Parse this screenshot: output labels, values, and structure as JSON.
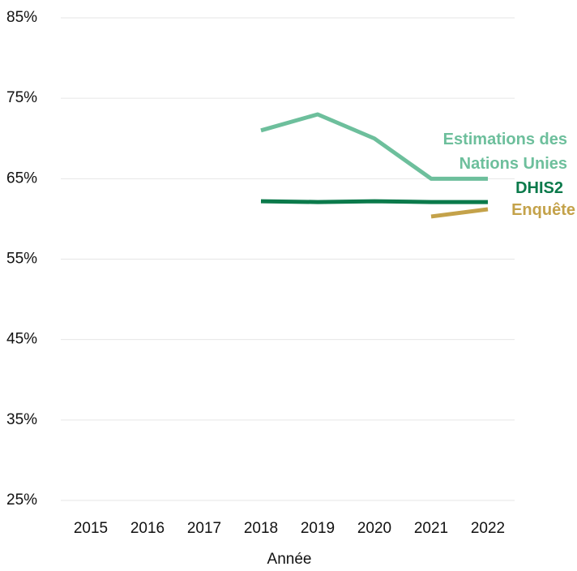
{
  "chart_data": {
    "type": "line",
    "categories": [
      "2015",
      "2016",
      "2017",
      "2018",
      "2019",
      "2020",
      "2021",
      "2022"
    ],
    "x_label": "Année",
    "series": [
      {
        "name": "Estimations des Nations Unies",
        "color": "#6dbf9c",
        "values": [
          null,
          null,
          null,
          71,
          73,
          70,
          65,
          65
        ]
      },
      {
        "name": "DHIS2",
        "color": "#0b7a4b",
        "values": [
          null,
          null,
          null,
          62.2,
          62.1,
          62.2,
          62.1,
          62.1
        ]
      },
      {
        "name": "Enquête",
        "color": "#c4a24a",
        "values": [
          null,
          null,
          null,
          null,
          null,
          null,
          60.3,
          61.2
        ]
      }
    ],
    "ylim": [
      25,
      85
    ],
    "yticks": [
      {
        "value": 25,
        "label": "25%"
      },
      {
        "value": 35,
        "label": "35%"
      },
      {
        "value": 45,
        "label": "45%"
      },
      {
        "value": 55,
        "label": "55%"
      },
      {
        "value": 65,
        "label": "65%"
      },
      {
        "value": 75,
        "label": "75%"
      },
      {
        "value": 85,
        "label": "85%"
      }
    ],
    "grid": true
  }
}
